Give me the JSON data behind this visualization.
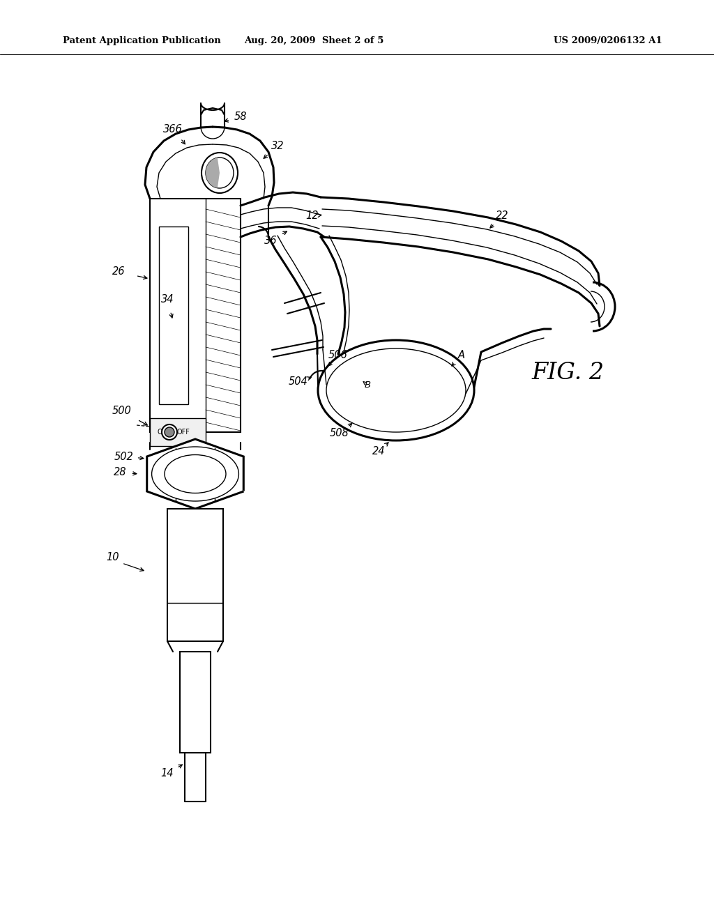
{
  "bg_color": "#ffffff",
  "line_color": "#000000",
  "fig_width": 10.24,
  "fig_height": 13.2,
  "header_left": "Patent Application Publication",
  "header_mid": "Aug. 20, 2009  Sheet 2 of 5",
  "header_right": "US 2009/0206132 A1",
  "fig_label": "FIG. 2"
}
